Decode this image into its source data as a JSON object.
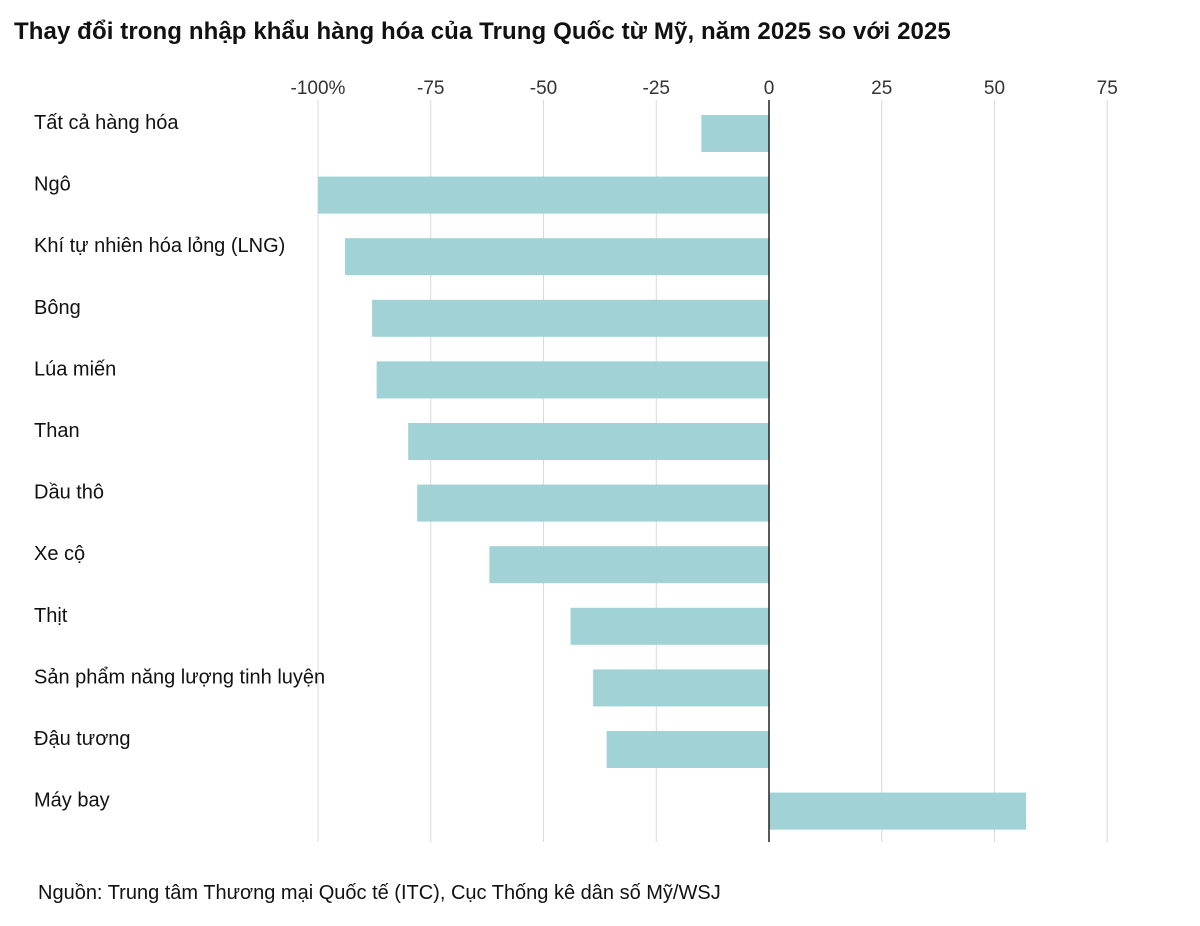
{
  "title": "Thay đổi trong nhập khẩu hàng hóa của Trung Quốc từ Mỹ, năm 2025 so với 2025",
  "source": "Nguồn: Trung tâm Thương mại Quốc tế (ITC), Cục Thống kê dân số Mỹ/WSJ",
  "colors": {
    "bar": "#a0d2d6",
    "grid": "#d9d9d9",
    "zero_line": "#222222"
  },
  "chart_data": {
    "type": "bar",
    "orientation": "horizontal",
    "title": "Thay đổi trong nhập khẩu hàng hóa của Trung Quốc từ Mỹ, năm 2025 so với 2025",
    "xlabel": "",
    "ylabel": "",
    "xlim": [
      -100,
      75
    ],
    "grid": true,
    "tick_labels": [
      "-100%",
      "-75",
      "-50",
      "-25",
      "0",
      "25",
      "50",
      "75"
    ],
    "tick_values": [
      -100,
      -75,
      -50,
      -25,
      0,
      25,
      50,
      75
    ],
    "categories": [
      "Tất cả hàng hóa",
      "Ngô",
      "Khí tự nhiên hóa lỏng (LNG)",
      "Bông",
      "Lúa miến",
      "Than",
      "Dầu thô",
      "Xe cộ",
      "Thịt",
      "Sản phẩm năng lượng tinh luyện",
      "Đậu tương",
      "Máy bay"
    ],
    "values": [
      -15,
      -100,
      -94,
      -88,
      -87,
      -80,
      -78,
      -62,
      -44,
      -39,
      -36,
      57
    ]
  }
}
